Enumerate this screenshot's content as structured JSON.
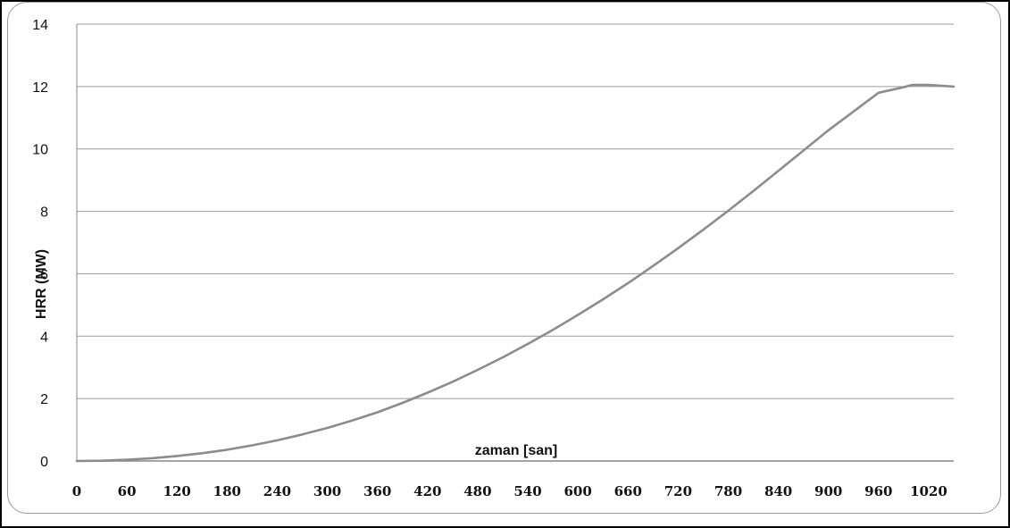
{
  "chart_data": {
    "type": "line",
    "title": "",
    "xlabel": "zaman [san]",
    "ylabel": "HRR (MW)",
    "xlim": [
      0,
      1050
    ],
    "ylim": [
      0,
      14
    ],
    "grid": true,
    "x_ticks": [
      "0",
      "60",
      "120",
      "180",
      "240",
      "300",
      "360",
      "420",
      "480",
      "540",
      "600",
      "660",
      "720",
      "780",
      "840",
      "900",
      "960",
      "1020"
    ],
    "y_ticks": [
      "0",
      "2",
      "4",
      "6",
      "8",
      "10",
      "12",
      "14"
    ],
    "series": [
      {
        "name": "",
        "color": "#8c8c8c",
        "x": [
          0,
          30,
          60,
          90,
          120,
          150,
          180,
          210,
          240,
          270,
          300,
          330,
          360,
          390,
          420,
          450,
          480,
          510,
          540,
          570,
          600,
          630,
          660,
          690,
          720,
          750,
          780,
          810,
          840,
          870,
          900,
          930,
          960,
          990,
          1000,
          1020,
          1050
        ],
        "y": [
          0,
          0.01,
          0.04,
          0.09,
          0.16,
          0.25,
          0.36,
          0.5,
          0.66,
          0.85,
          1.06,
          1.3,
          1.56,
          1.86,
          2.19,
          2.54,
          2.92,
          3.32,
          3.75,
          4.2,
          4.68,
          5.18,
          5.7,
          6.25,
          6.82,
          7.41,
          8.02,
          8.65,
          9.3,
          9.95,
          10.6,
          11.2,
          11.8,
          11.98,
          12.05,
          12.05,
          12.0
        ]
      }
    ]
  },
  "colors": {
    "gridline": "#9b9b9b",
    "axis": "#888888",
    "line": "#8c8c8c",
    "frame": "#000000"
  }
}
